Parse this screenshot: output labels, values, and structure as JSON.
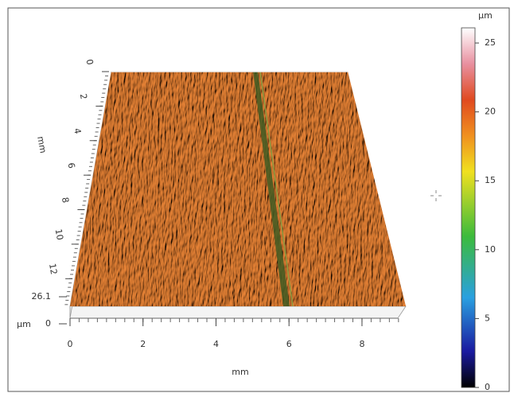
{
  "chart_data": {
    "type": "surface3d",
    "x_label": "mm",
    "y_label": "mm",
    "z_label": "µm",
    "xlim": [
      0,
      9.2
    ],
    "xticks": [
      0,
      2,
      4,
      6,
      8
    ],
    "ylim": [
      0,
      13.6
    ],
    "yticks": [
      0,
      2,
      4,
      6,
      8,
      10,
      12
    ],
    "zlim": [
      0,
      26.1
    ],
    "zticks": [
      26.1,
      0
    ],
    "colorbar": {
      "label": "µm",
      "ticks": [
        0,
        5,
        10,
        15,
        20,
        25
      ]
    }
  }
}
